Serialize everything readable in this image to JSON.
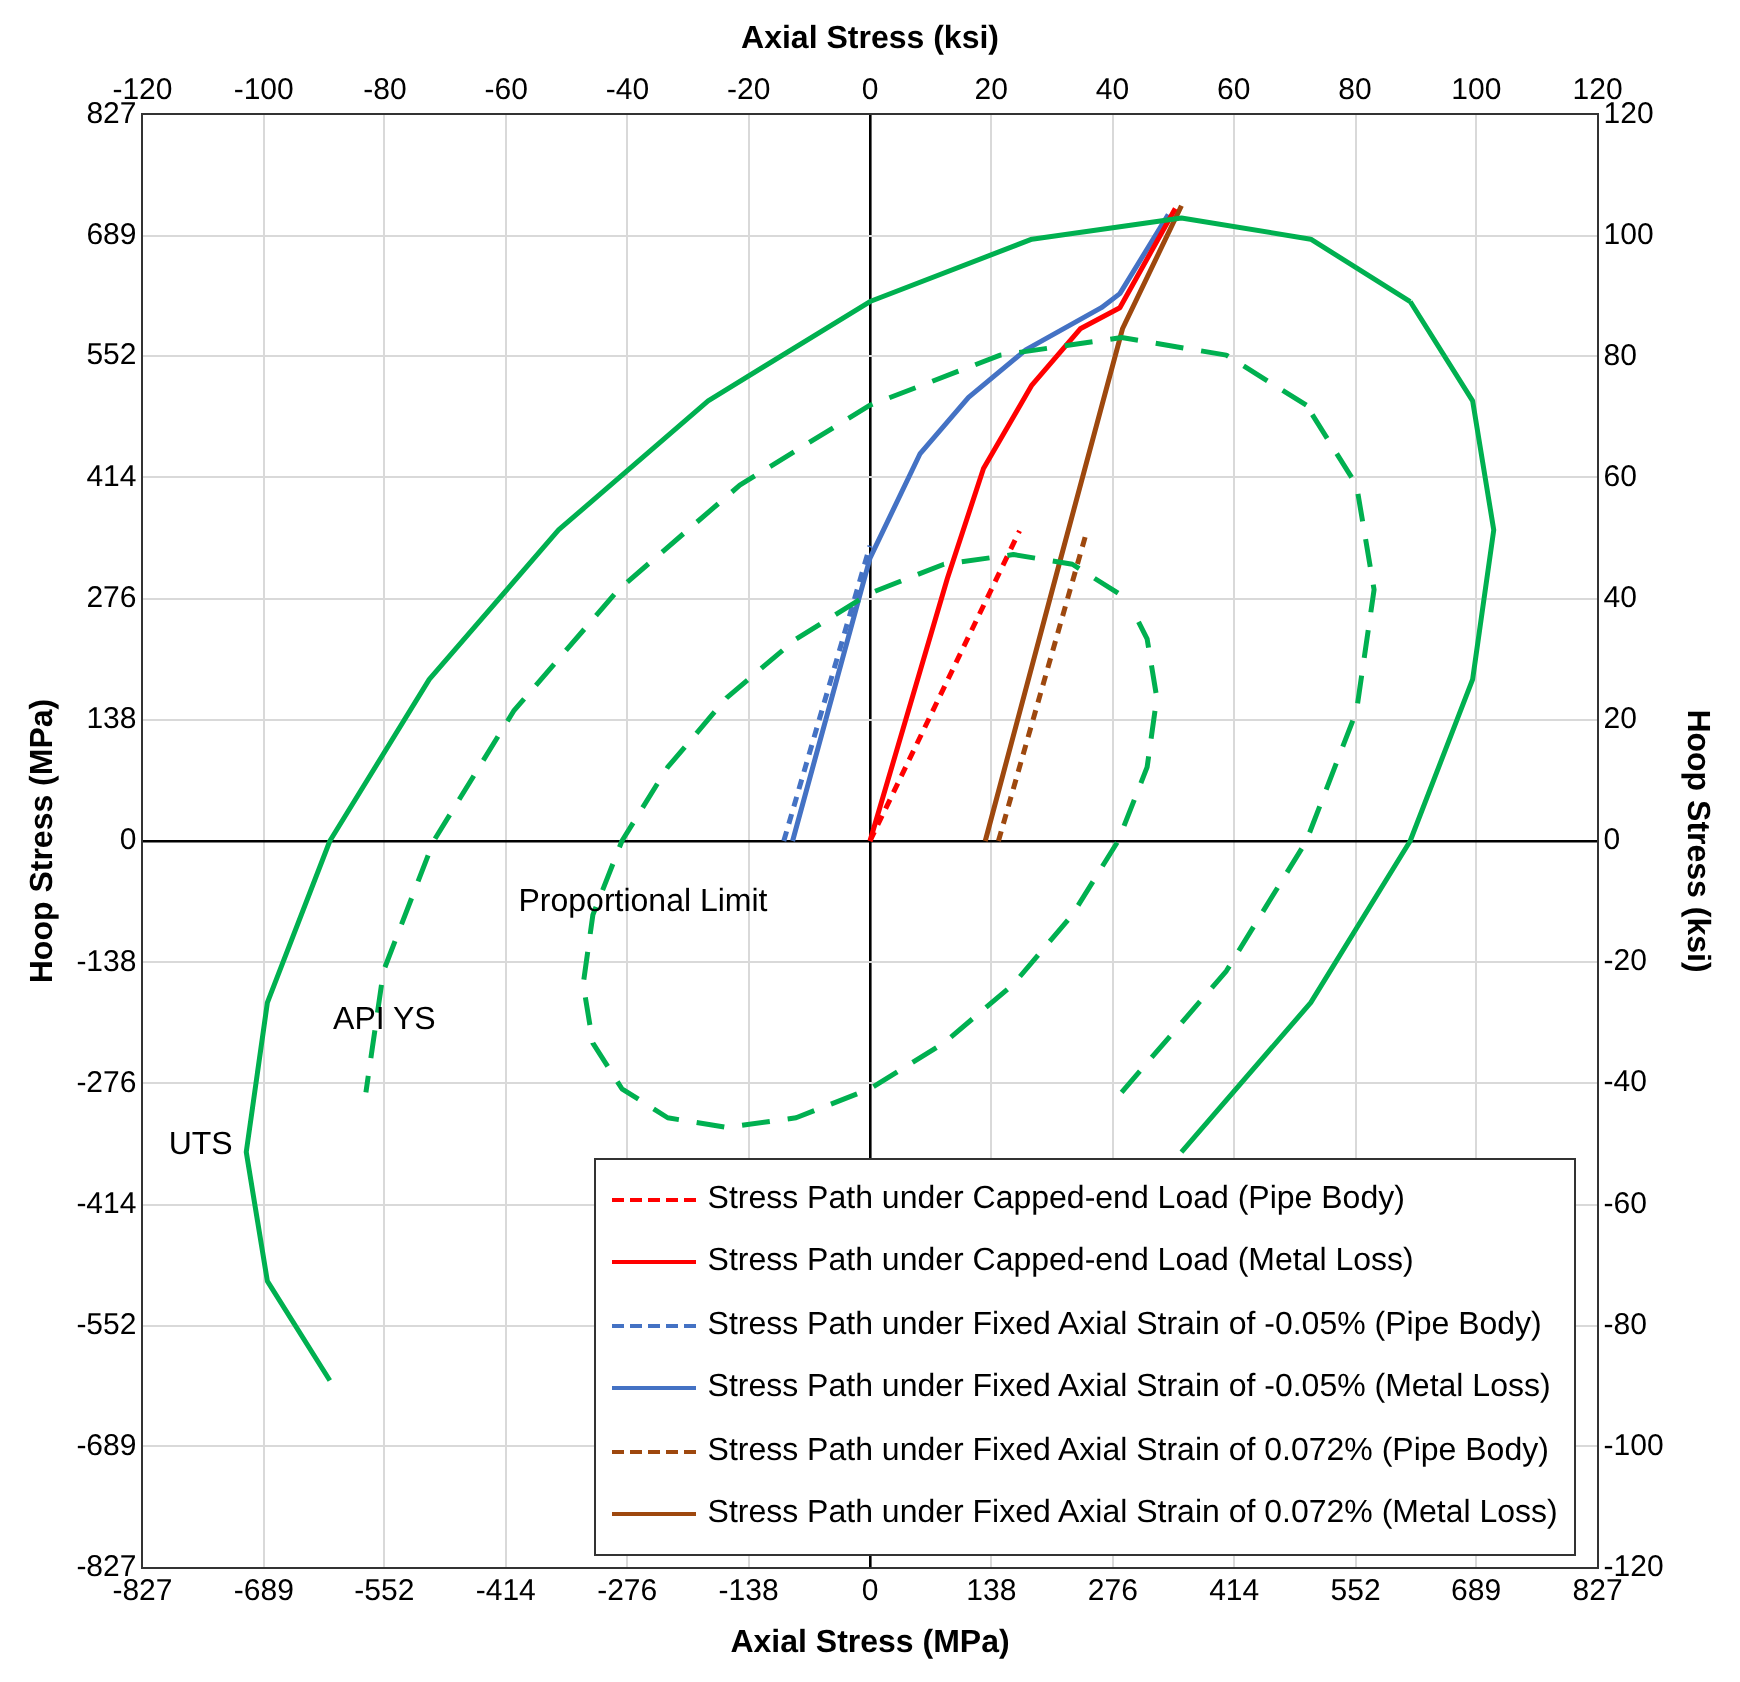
{
  "chart_data": {
    "type": "line",
    "xlabel": "Axial Stress (MPa)",
    "x2label": "Axial Stress (ksi)",
    "ylabel": "Hoop Stress (MPa)",
    "y2label": "Hoop Stress (ksi)",
    "xlim": [
      -827,
      827
    ],
    "xticks": [
      -827,
      -689,
      -552,
      -414,
      -276,
      -138,
      0,
      138,
      276,
      414,
      552,
      689,
      827
    ],
    "x2lim": [
      -120,
      120
    ],
    "x2ticks": [
      -120,
      -100,
      -80,
      -60,
      -40,
      -20,
      0,
      20,
      40,
      60,
      80,
      100,
      120
    ],
    "ylim": [
      -827,
      827
    ],
    "yticks": [
      -827,
      -689,
      -552,
      -414,
      -276,
      -138,
      0,
      138,
      276,
      414,
      552,
      689,
      827
    ],
    "y2lim": [
      -120,
      120
    ],
    "y2ticks": [
      -120,
      -100,
      -80,
      -60,
      -40,
      -20,
      0,
      20,
      40,
      60,
      80,
      100,
      120
    ],
    "grid": true,
    "legend": "bottom right",
    "marker": "none",
    "annotations": [
      "UTS",
      {
        "text": "API YS",
        "x": -552,
        "y": -204
      },
      "Proportional Limit"
    ],
    "series": [
      {
        "color": "#00b050",
        "line_style": "solid",
        "x": [
          614,
          501,
          354,
          184,
          0,
          -184,
          -354,
          -501,
          -614,
          -685,
          -709,
          -685,
          -614,
          -501,
          -354,
          -184,
          0,
          184,
          354,
          501,
          614,
          685,
          709,
          685,
          614
        ],
        "values": [
          614,
          685,
          709,
          685,
          614,
          501,
          354,
          184,
          0,
          -184,
          -354,
          -501,
          -614,
          null,
          null,
          null,
          null,
          null,
          -354,
          -184,
          0,
          184,
          354,
          501,
          614
        ]
      },
      {
        "color": "#00b050",
        "line_style": "dashed",
        "x": [
          496,
          405,
          286,
          148,
          0,
          -148,
          -286,
          -405,
          -496,
          -553,
          -573,
          -553,
          -496,
          -405,
          -286,
          -148,
          0,
          148,
          286,
          405,
          496,
          553,
          573,
          553,
          496
        ],
        "values": [
          496,
          553,
          573,
          553,
          496,
          405,
          286,
          148,
          0,
          -148,
          -286,
          null,
          null,
          null,
          null,
          null,
          null,
          null,
          -286,
          -148,
          0,
          148,
          286,
          405,
          496
        ]
      },
      {
        "color": "#00b050",
        "line_style": "dashed",
        "x": [
          282,
          230,
          163,
          84,
          0,
          -84,
          -163,
          -230,
          -282,
          -315,
          -326,
          -315,
          -282,
          -230,
          -163,
          -84,
          0,
          84,
          163,
          230,
          282,
          315,
          326,
          315,
          301
        ],
        "values": [
          282,
          315,
          326,
          315,
          282,
          230,
          163,
          84,
          0,
          -84,
          -163,
          -230,
          -282,
          -315,
          -326,
          -315,
          -282,
          -230,
          -163,
          -84,
          0,
          84,
          163,
          230,
          258
        ]
      },
      {
        "name": "Stress Path under Capped-end Load (Pipe Body)",
        "color": "#ff0000",
        "line_style": "dotted",
        "x": [
          0,
          170
        ],
        "values": [
          0,
          353
        ]
      },
      {
        "name": "Stress Path under Capped-end Load (Metal Loss)",
        "color": "#ff0000",
        "line_style": "solid",
        "x": [
          0,
          88,
          129,
          184,
          239,
          284,
          347
        ],
        "values": [
          0,
          299,
          424,
          519,
          583,
          607,
          720
        ]
      },
      {
        "name": "Stress Path under Fixed Axial Strain of -0.05% (Pipe Body)",
        "color": "#4472c4",
        "line_style": "dotted",
        "x": [
          -98,
          0
        ],
        "values": [
          0,
          336
        ]
      },
      {
        "name": "Stress Path under Fixed Axial Strain of -0.05% (Metal Loss)",
        "color": "#4472c4",
        "line_style": "solid",
        "x": [
          -88,
          0,
          57,
          112,
          177,
          263,
          284,
          339
        ],
        "values": [
          0,
          322,
          441,
          505,
          559,
          607,
          623,
          713
        ]
      },
      {
        "name": "Stress Path under Fixed Axial Strain of 0.072% (Pipe Body)",
        "color": "#9e480e",
        "line_style": "dotted",
        "x": [
          146,
          246
        ],
        "values": [
          0,
          351
        ]
      },
      {
        "name": "Stress Path under Fixed Axial Strain of 0.072% (Metal Loss)",
        "color": "#9e480e",
        "line_style": "solid",
        "x": [
          131,
          215,
          287,
          354
        ],
        "values": [
          0,
          315,
          583,
          723
        ]
      }
    ]
  }
}
